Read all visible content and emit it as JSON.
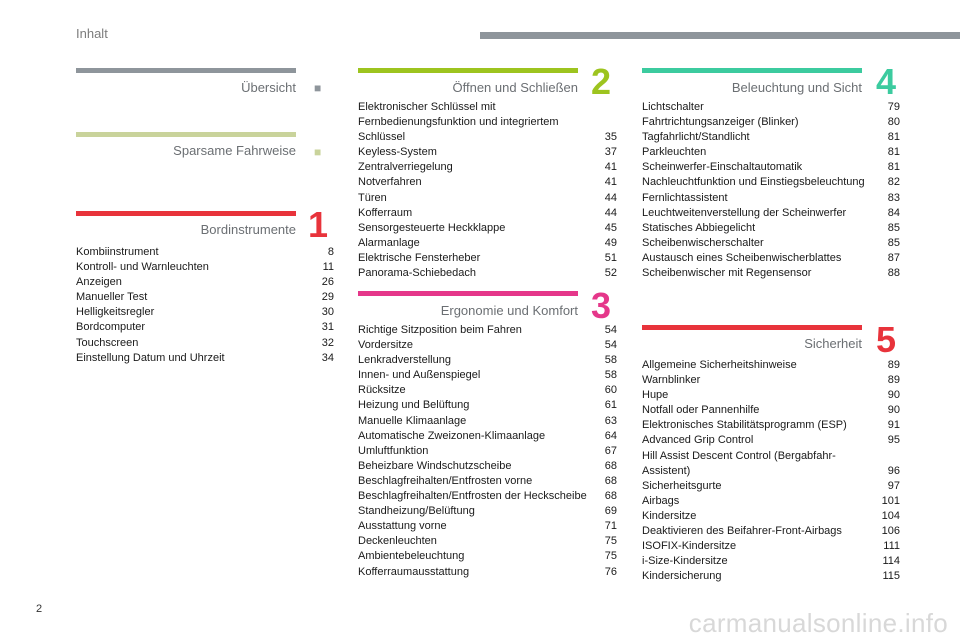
{
  "header": {
    "title": "Inhalt"
  },
  "page_number": "2",
  "watermark": "carmanualsonline.info",
  "sections": {
    "uebersicht": {
      "title": "Übersicht",
      "color": "#8e959b",
      "items": []
    },
    "sparsam": {
      "title": "Sparsame Fahrweise",
      "color": "#c9d39b",
      "items": []
    },
    "bordinstrumente": {
      "title": "Bordinstrumente",
      "number": "1",
      "color": "#e8333b",
      "items": [
        {
          "title": "Kombiinstrument",
          "page": "8"
        },
        {
          "title": "Kontroll- und Warnleuchten",
          "page": "11"
        },
        {
          "title": "Anzeigen",
          "page": "26"
        },
        {
          "title": "Manueller Test",
          "page": "29"
        },
        {
          "title": "Helligkeitsregler",
          "page": "30"
        },
        {
          "title": "Bordcomputer",
          "page": "31"
        },
        {
          "title": "Touchscreen",
          "page": "32"
        },
        {
          "title": "Einstellung Datum und Uhrzeit",
          "page": "34"
        }
      ]
    },
    "oeffnen": {
      "title": "Öffnen und Schließen",
      "number": "2",
      "color": "#9dc41f",
      "items": [
        {
          "title": "Elektronischer Schlüssel mit Fernbedienungsfunktion und integriertem Schlüssel",
          "page": "35"
        },
        {
          "title": "Keyless-System",
          "page": "37"
        },
        {
          "title": "Zentralverriegelung",
          "page": "41"
        },
        {
          "title": "Notverfahren",
          "page": "41"
        },
        {
          "title": "Türen",
          "page": "44"
        },
        {
          "title": "Kofferraum",
          "page": "44"
        },
        {
          "title": "Sensorgesteuerte Heckklappe",
          "page": "45"
        },
        {
          "title": "Alarmanlage",
          "page": "49"
        },
        {
          "title": "Elektrische Fensterheber",
          "page": "51"
        },
        {
          "title": "Panorama-Schiebedach",
          "page": "52"
        }
      ]
    },
    "ergonomie": {
      "title": "Ergonomie und Komfort",
      "number": "3",
      "color": "#e5378a",
      "items": [
        {
          "title": "Richtige Sitzposition beim Fahren",
          "page": "54"
        },
        {
          "title": "Vordersitze",
          "page": "54"
        },
        {
          "title": "Lenkradverstellung",
          "page": "58"
        },
        {
          "title": "Innen- und Außenspiegel",
          "page": "58"
        },
        {
          "title": "Rücksitze",
          "page": "60"
        },
        {
          "title": "Heizung und Belüftung",
          "page": "61"
        },
        {
          "title": "Manuelle Klimaanlage",
          "page": "63"
        },
        {
          "title": "Automatische Zweizonen-Klimaanlage",
          "page": "64"
        },
        {
          "title": "Umluftfunktion",
          "page": "67"
        },
        {
          "title": "Beheizbare Windschutzscheibe",
          "page": "68"
        },
        {
          "title": "Beschlagfreihalten/Entfrosten vorne",
          "page": "68"
        },
        {
          "title": "Beschlagfreihalten/Entfrosten der Heckscheibe",
          "page": "68"
        },
        {
          "title": "Standheizung/Belüftung",
          "page": "69"
        },
        {
          "title": "Ausstattung vorne",
          "page": "71"
        },
        {
          "title": "Deckenleuchten",
          "page": "75"
        },
        {
          "title": "Ambientebeleuchtung",
          "page": "75"
        },
        {
          "title": "Kofferraumausstattung",
          "page": "76"
        }
      ]
    },
    "beleuchtung": {
      "title": "Beleuchtung und Sicht",
      "number": "4",
      "color": "#3ccb9f",
      "items": [
        {
          "title": "Lichtschalter",
          "page": "79"
        },
        {
          "title": "Fahrtrichtungsanzeiger (Blinker)",
          "page": "80"
        },
        {
          "title": "Tagfahrlicht/Standlicht",
          "page": "81"
        },
        {
          "title": "Parkleuchten",
          "page": "81"
        },
        {
          "title": "Scheinwerfer-Einschaltautomatik",
          "page": "81"
        },
        {
          "title": "Nachleuchtfunktion und Einstiegsbeleuchtung",
          "page": "82"
        },
        {
          "title": "Fernlichtassistent",
          "page": "83"
        },
        {
          "title": "Leuchtweitenverstellung der Scheinwerfer",
          "page": "84"
        },
        {
          "title": "Statisches Abbiegelicht",
          "page": "85"
        },
        {
          "title": "Scheibenwischerschalter",
          "page": "85"
        },
        {
          "title": "Austausch eines Scheibenwischerblattes",
          "page": "87"
        },
        {
          "title": "Scheibenwischer mit Regensensor",
          "page": "88"
        }
      ]
    },
    "sicherheit": {
      "title": "Sicherheit",
      "number": "5",
      "color": "#e8333b",
      "items": [
        {
          "title": "Allgemeine Sicherheitshinweise",
          "page": "89"
        },
        {
          "title": "Warnblinker",
          "page": "89"
        },
        {
          "title": "Hupe",
          "page": "90"
        },
        {
          "title": "Notfall oder Pannenhilfe",
          "page": "90"
        },
        {
          "title": "Elektronisches Stabilitätsprogramm (ESP)",
          "page": "91"
        },
        {
          "title": "Advanced Grip Control",
          "page": "95"
        },
        {
          "title": "Hill Assist Descent Control (Bergabfahr-Assistent)",
          "page": "96"
        },
        {
          "title": "Sicherheitsgurte",
          "page": "97"
        },
        {
          "title": "Airbags",
          "page": "101"
        },
        {
          "title": "Kindersitze",
          "page": "104"
        },
        {
          "title": "Deaktivieren des Beifahrer-Front-Airbags",
          "page": "106"
        },
        {
          "title": "ISOFIX-Kindersitze",
          "page": "111"
        },
        {
          "title": "i-Size-Kindersitze",
          "page": "114"
        },
        {
          "title": "Kindersicherung",
          "page": "115"
        }
      ]
    }
  }
}
